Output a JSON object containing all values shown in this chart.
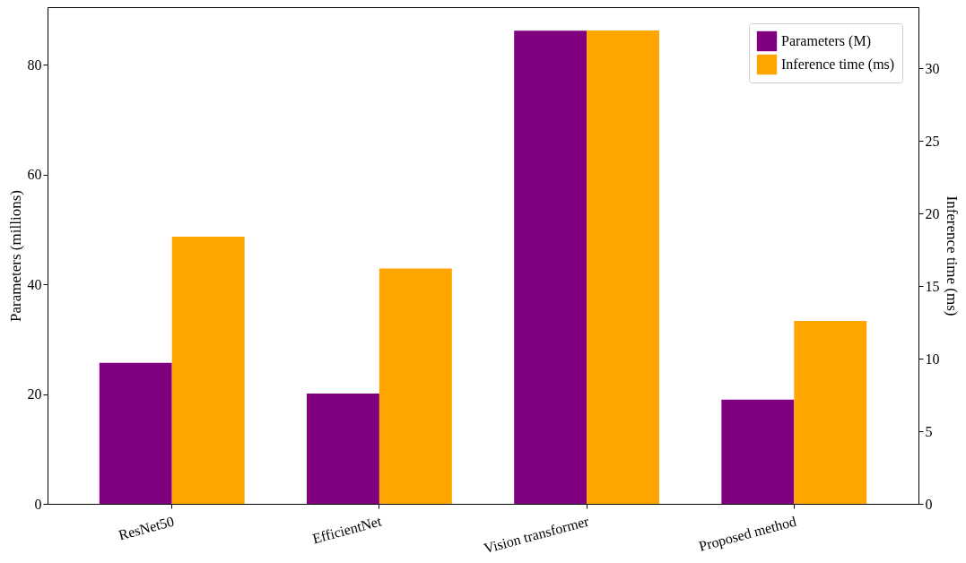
{
  "chart_data": {
    "type": "bar",
    "categories": [
      "ResNet50",
      "EfficientNet",
      "Vision transformer",
      "Proposed method"
    ],
    "series": [
      {
        "name": "Parameters (M)",
        "color": "#800080",
        "values": [
          25.7,
          20.1,
          86.2,
          19.0
        ]
      },
      {
        "name": "Inference time (ms)",
        "color": "#ffa500",
        "values": [
          18.4,
          16.2,
          32.6,
          12.6
        ],
        "axis": "y2"
      }
    ],
    "ylabel": "Parameters (millions)",
    "y2label": "Inference time (ms)",
    "ylim": [
      0,
      90.5
    ],
    "yticks": [
      0,
      20,
      40,
      60,
      80
    ],
    "y2lim": [
      0,
      34.2
    ],
    "y2ticks": [
      0,
      5,
      10,
      15,
      20,
      25,
      30
    ],
    "grid": false,
    "legend": "top right"
  }
}
